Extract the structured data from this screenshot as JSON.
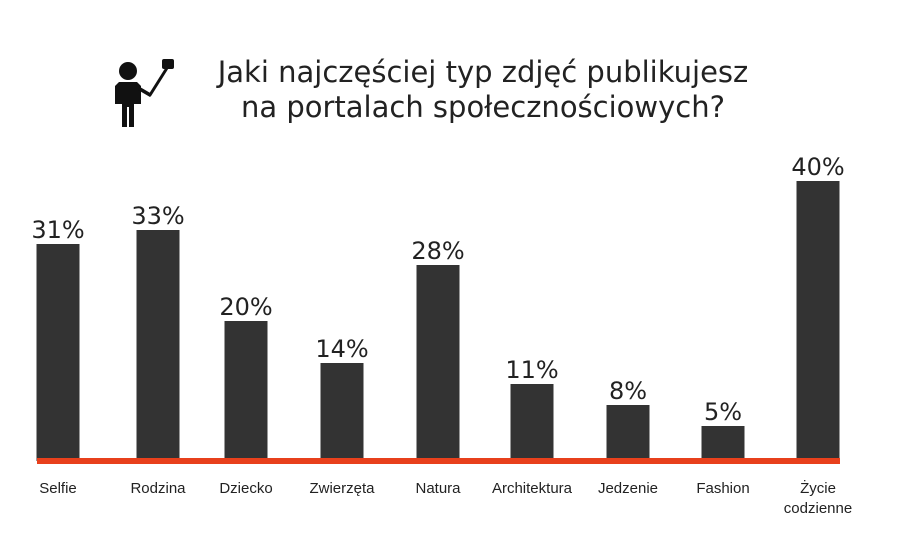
{
  "chart_data": {
    "type": "bar",
    "title_lines": [
      "Jaki najczęściej typ zdjęć publikujesz",
      "na portalach społecznościowych?"
    ],
    "icon": "selfie-stick-person-icon",
    "categories": [
      [
        "Selfie"
      ],
      [
        "Rodzina"
      ],
      [
        "Dziecko"
      ],
      [
        "Zwierzęta"
      ],
      [
        "Natura"
      ],
      [
        "Architektura"
      ],
      [
        "Jedzenie"
      ],
      [
        "Fashion"
      ],
      [
        "Życie",
        "codzienne"
      ]
    ],
    "values": [
      31,
      33,
      20,
      14,
      28,
      11,
      8,
      5,
      40
    ],
    "value_labels": [
      "31%",
      "33%",
      "20%",
      "14%",
      "28%",
      "11%",
      "8%",
      "5%",
      "40%"
    ],
    "ylim": [
      0,
      40
    ],
    "grid": false,
    "legend": "none",
    "colors": {
      "bar": "#333333",
      "baseline": "#e8401c",
      "text": "#222222"
    }
  }
}
